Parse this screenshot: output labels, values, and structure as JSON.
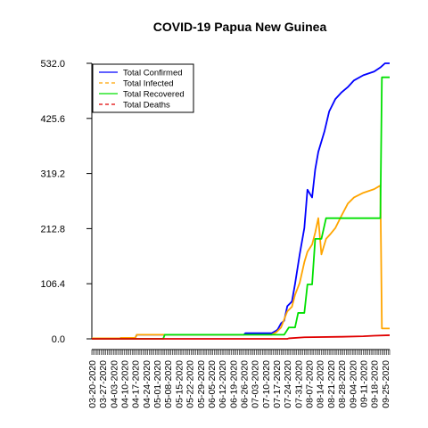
{
  "chart_data": {
    "type": "line",
    "title": "COVID-19 Papua New Guinea",
    "xlabel": "",
    "ylabel": "",
    "x_tick_labels": [
      "03-20-2020",
      "03-27-2020",
      "04-03-2020",
      "04-10-2020",
      "04-17-2020",
      "04-24-2020",
      "05-01-2020",
      "05-08-2020",
      "05-15-2020",
      "05-22-2020",
      "05-29-2020",
      "06-05-2020",
      "06-12-2020",
      "06-19-2020",
      "06-26-2020",
      "07-03-2020",
      "07-10-2020",
      "07-17-2020",
      "07-24-2020",
      "07-31-2020",
      "08-07-2020",
      "08-14-2020",
      "08-21-2020",
      "08-28-2020",
      "09-04-2020",
      "09-11-2020",
      "09-18-2020",
      "09-25-2020"
    ],
    "x_range": [
      "03-20-2020",
      "09-28-2020"
    ],
    "y_ticks": [
      "0.0",
      "106.4",
      "212.8",
      "319.2",
      "425.6",
      "532.0"
    ],
    "ylim": [
      0,
      532
    ],
    "grid": false,
    "legend_position": "top-left",
    "series": [
      {
        "name": "Total Confirmed",
        "color": "#0000ff",
        "points": [
          [
            "03-20-2020",
            1
          ],
          [
            "04-07-2020",
            1
          ],
          [
            "04-08-2020",
            2
          ],
          [
            "04-17-2020",
            2
          ],
          [
            "04-18-2020",
            8
          ],
          [
            "06-26-2020",
            8
          ],
          [
            "06-27-2020",
            11
          ],
          [
            "07-14-2020",
            11
          ],
          [
            "07-17-2020",
            16
          ],
          [
            "07-18-2020",
            19
          ],
          [
            "07-20-2020",
            30
          ],
          [
            "07-22-2020",
            35
          ],
          [
            "07-24-2020",
            63
          ],
          [
            "07-27-2020",
            72
          ],
          [
            "07-29-2020",
            106
          ],
          [
            "08-01-2020",
            163
          ],
          [
            "08-04-2020",
            214
          ],
          [
            "08-06-2020",
            288
          ],
          [
            "08-09-2020",
            273
          ],
          [
            "08-11-2020",
            327
          ],
          [
            "08-13-2020",
            361
          ],
          [
            "08-17-2020",
            401
          ],
          [
            "08-20-2020",
            439
          ],
          [
            "08-24-2020",
            463
          ],
          [
            "08-28-2020",
            476
          ],
          [
            "09-01-2020",
            486
          ],
          [
            "09-05-2020",
            499
          ],
          [
            "09-11-2020",
            509
          ],
          [
            "09-18-2020",
            516
          ],
          [
            "09-22-2020",
            524
          ],
          [
            "09-25-2020",
            532
          ],
          [
            "09-28-2020",
            532
          ]
        ]
      },
      {
        "name": "Total Infected",
        "color": "#ffa500",
        "points": [
          [
            "03-20-2020",
            1
          ],
          [
            "04-07-2020",
            1
          ],
          [
            "04-08-2020",
            2
          ],
          [
            "04-17-2020",
            2
          ],
          [
            "04-18-2020",
            8
          ],
          [
            "05-05-2020",
            8
          ],
          [
            "05-06-2020",
            8
          ],
          [
            "07-14-2020",
            8
          ],
          [
            "07-17-2020",
            13
          ],
          [
            "07-20-2020",
            22
          ],
          [
            "07-24-2020",
            53
          ],
          [
            "07-27-2020",
            62
          ],
          [
            "07-29-2020",
            85
          ],
          [
            "08-01-2020",
            108
          ],
          [
            "08-04-2020",
            148
          ],
          [
            "08-06-2020",
            168
          ],
          [
            "08-09-2020",
            182
          ],
          [
            "08-11-2020",
            205
          ],
          [
            "08-13-2020",
            233
          ],
          [
            "08-15-2020",
            163
          ],
          [
            "08-18-2020",
            193
          ],
          [
            "08-21-2020",
            203
          ],
          [
            "08-24-2020",
            214
          ],
          [
            "08-28-2020",
            238
          ],
          [
            "09-01-2020",
            261
          ],
          [
            "09-05-2020",
            273
          ],
          [
            "09-11-2020",
            282
          ],
          [
            "09-18-2020",
            289
          ],
          [
            "09-22-2020",
            296
          ],
          [
            "09-23-2020",
            20
          ],
          [
            "09-28-2020",
            20
          ]
        ]
      },
      {
        "name": "Total Recovered",
        "color": "#00e000",
        "points": [
          [
            "03-20-2020",
            0
          ],
          [
            "05-05-2020",
            0
          ],
          [
            "05-06-2020",
            8
          ],
          [
            "07-14-2020",
            8
          ],
          [
            "07-15-2020",
            8
          ],
          [
            "07-22-2020",
            8
          ],
          [
            "07-25-2020",
            22
          ],
          [
            "07-29-2020",
            22
          ],
          [
            "07-31-2020",
            50
          ],
          [
            "08-04-2020",
            50
          ],
          [
            "08-06-2020",
            105
          ],
          [
            "08-09-2020",
            105
          ],
          [
            "08-11-2020",
            193
          ],
          [
            "08-15-2020",
            193
          ],
          [
            "08-18-2020",
            233
          ],
          [
            "09-22-2020",
            233
          ],
          [
            "09-23-2020",
            505
          ],
          [
            "09-28-2020",
            505
          ]
        ]
      },
      {
        "name": "Total Deaths",
        "color": "#e00000",
        "points": [
          [
            "03-20-2020",
            0
          ],
          [
            "07-24-2020",
            0
          ],
          [
            "07-25-2020",
            1
          ],
          [
            "08-04-2020",
            3
          ],
          [
            "08-28-2020",
            4
          ],
          [
            "09-11-2020",
            5
          ],
          [
            "09-18-2020",
            6
          ],
          [
            "09-28-2020",
            7
          ]
        ]
      }
    ]
  }
}
